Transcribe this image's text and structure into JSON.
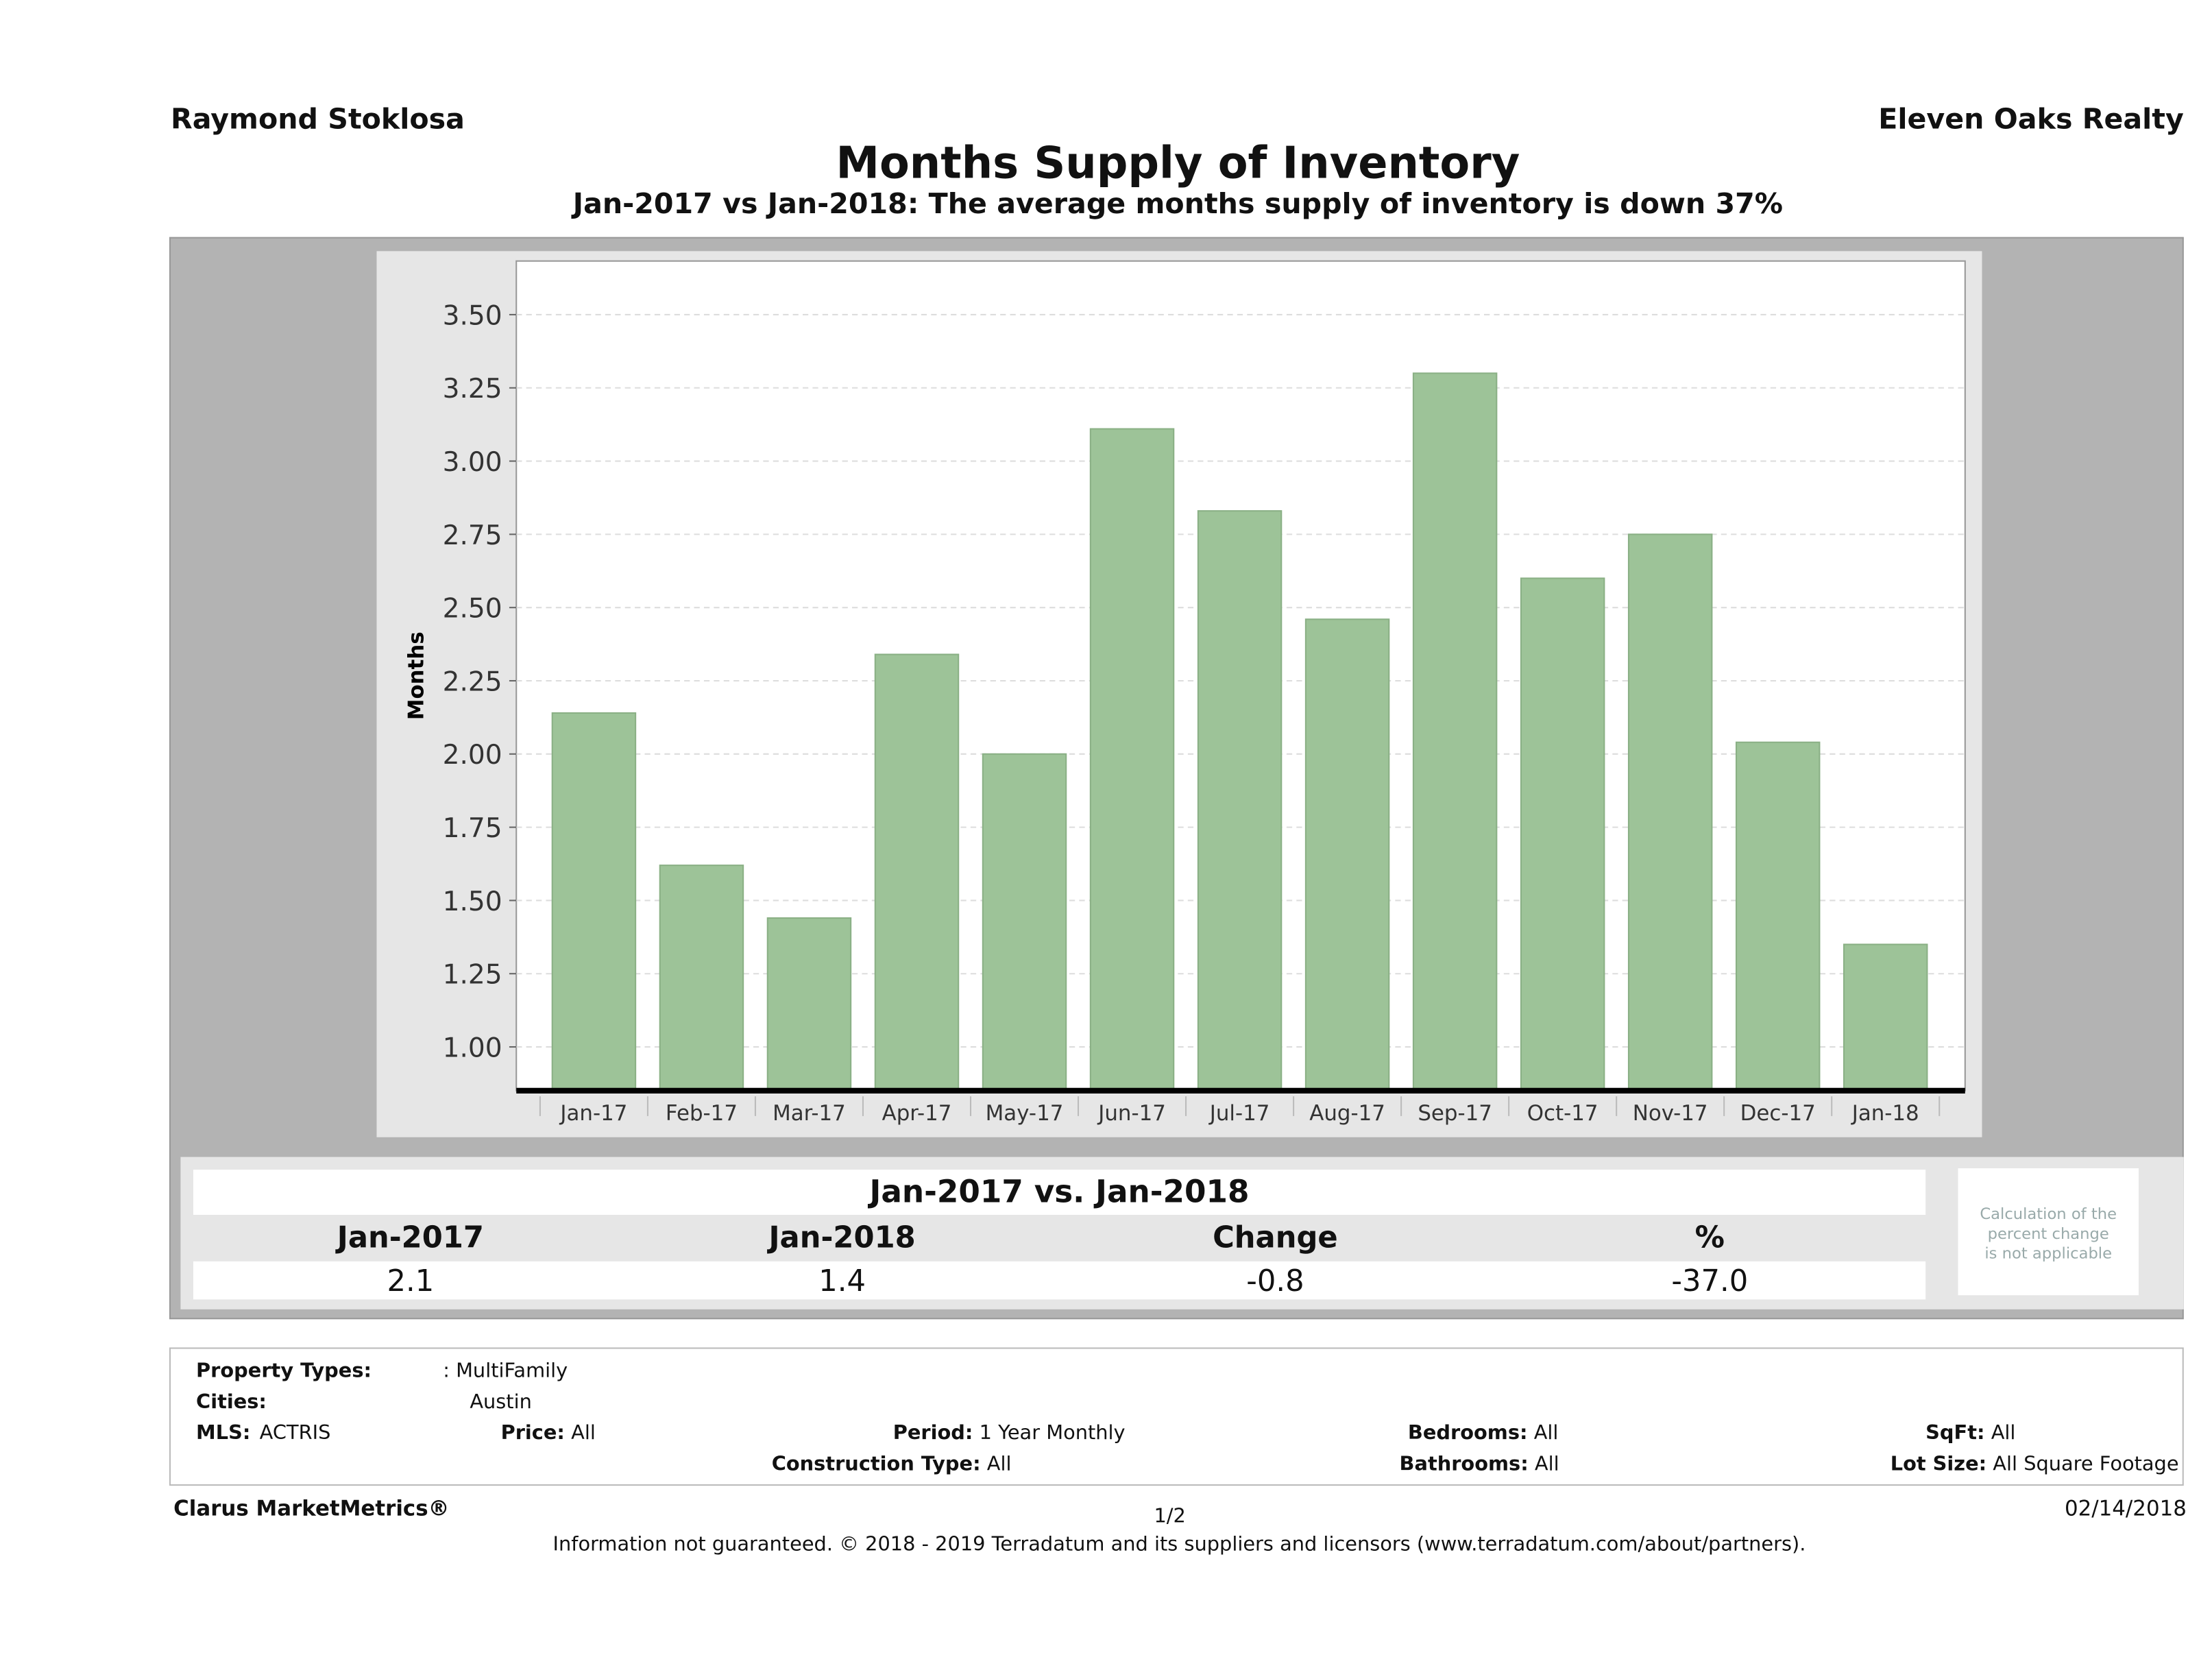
{
  "header": {
    "agent": "Raymond Stoklosa",
    "brokerage": "Eleven Oaks Realty"
  },
  "chart_data": {
    "type": "bar",
    "title": "Months Supply of Inventory",
    "subtitle": "Jan-2017 vs Jan-2018: The average months supply of inventory is down 37%",
    "xlabel": "",
    "ylabel": "Months",
    "ylim": [
      0.85,
      3.68
    ],
    "yticks": [
      "1.00",
      "1.25",
      "1.50",
      "1.75",
      "2.00",
      "2.25",
      "2.50",
      "2.75",
      "3.00",
      "3.25",
      "3.50"
    ],
    "grid": true,
    "categories": [
      "Jan-17",
      "Feb-17",
      "Mar-17",
      "Apr-17",
      "May-17",
      "Jun-17",
      "Jul-17",
      "Aug-17",
      "Sep-17",
      "Oct-17",
      "Nov-17",
      "Dec-17",
      "Jan-18"
    ],
    "values": [
      2.14,
      1.62,
      1.44,
      2.34,
      2.0,
      3.11,
      2.83,
      2.46,
      3.3,
      2.6,
      2.75,
      2.04,
      1.35
    ],
    "bar_color": "#9dc398"
  },
  "summary": {
    "title": "Jan-2017 vs. Jan-2018",
    "headers": [
      "Jan-2017",
      "Jan-2018",
      "Change",
      "%"
    ],
    "values": [
      "2.1",
      "1.4",
      "-0.8",
      "-37.0"
    ],
    "note": [
      "Calculation of the",
      "percent change",
      "is not applicable"
    ]
  },
  "filters": {
    "property_types_label": "Property Types:",
    "property_types": ": MultiFamily",
    "cities_label": "Cities:",
    "cities": "Austin",
    "mls_label": "MLS:",
    "mls": "ACTRIS",
    "price_label": "Price:",
    "price": "All",
    "period_label": "Period:",
    "period": "1 Year Monthly",
    "construction_label": "Construction Type:",
    "construction": "All",
    "bedrooms_label": "Bedrooms:",
    "bedrooms": "All",
    "bathrooms_label": "Bathrooms:",
    "bathrooms": "All",
    "sqft_label": "SqFt:",
    "sqft": "All",
    "lot_label": "Lot Size:",
    "lot": "All Square Footage"
  },
  "footer": {
    "brand": "Clarus MarketMetrics®",
    "page": "1/2",
    "date": "02/14/2018",
    "disclaimer": "Information not guaranteed. © 2018 - 2019 Terradatum and its suppliers and licensors (www.terradatum.com/about/partners)."
  }
}
